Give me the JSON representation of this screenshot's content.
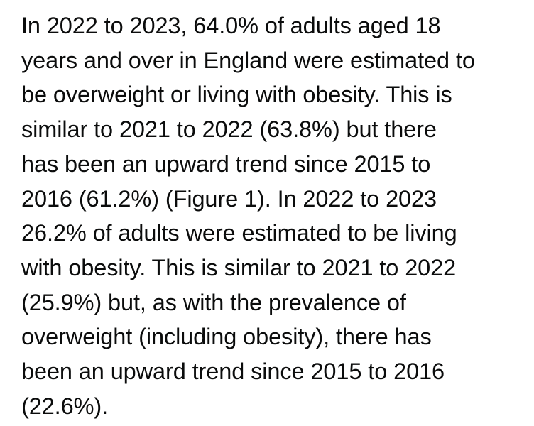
{
  "paragraph": {
    "lines": [
      "In 2022 to 2023, 64.0% of adults aged 18",
      "years and over in England were estimated to",
      "be overweight or living with obesity. This is",
      "similar to 2021 to 2022 (63.8%) but there",
      "has been an upward trend since 2015 to",
      "2016 (61.2%) (Figure 1). In 2022 to 2023",
      "26.2% of adults were estimated to be living",
      "with obesity. This is similar to 2021 to 2022",
      "(25.9%) but, as with the prevalence of",
      "overweight (including obesity), there has",
      "been an upward trend since 2015 to 2016",
      "(22.6%)."
    ]
  }
}
